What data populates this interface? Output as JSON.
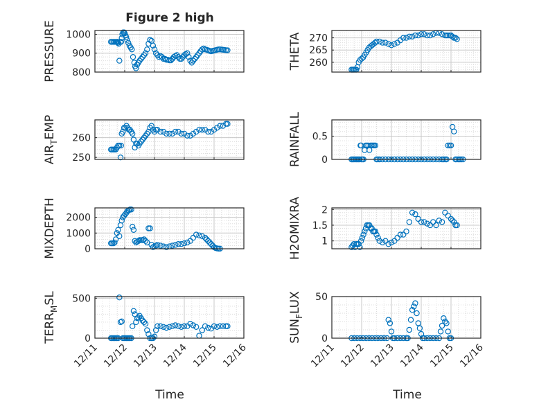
{
  "title": "Figure 2 high",
  "xlabel": "Time",
  "x_ticks": [
    "12/11",
    "12/12",
    "12/13",
    "12/14",
    "12/15",
    "12/16"
  ],
  "marker_color": "#0072BD",
  "chart_data": [
    {
      "type": "scatter",
      "ylabel": "PRESSURE",
      "ylim": [
        800,
        1020
      ],
      "yticks": [
        "800",
        "900",
        "1000"
      ],
      "xlim": [
        "12/11",
        "12/16"
      ],
      "grid": true,
      "x": [
        0.54,
        0.58,
        0.62,
        0.66,
        0.7,
        0.74,
        0.76,
        0.78,
        0.8,
        0.82,
        0.86,
        0.88,
        0.9,
        0.92,
        0.95,
        0.98,
        1.0,
        1.02,
        1.05,
        1.08,
        1.12,
        1.16,
        1.2,
        1.24,
        1.28,
        1.32,
        1.35,
        1.38,
        1.42,
        1.46,
        1.5,
        1.55,
        1.6,
        1.65,
        1.7,
        1.75,
        1.8,
        1.85,
        1.9,
        1.95,
        2.0,
        2.05,
        2.1,
        2.15,
        2.2,
        2.25,
        2.3,
        2.35,
        2.4,
        2.45,
        2.5,
        2.55,
        2.6,
        2.65,
        2.7,
        2.75,
        2.8,
        2.85,
        2.9,
        2.95,
        3.0,
        3.05,
        3.1,
        3.15,
        3.2,
        3.25,
        3.3,
        3.35,
        3.4,
        3.45,
        3.5,
        3.55,
        3.6,
        3.65,
        3.7,
        3.75,
        3.8,
        3.85,
        3.9,
        3.95,
        4.0,
        4.05,
        4.1,
        4.15,
        4.2,
        4.25,
        4.3,
        4.35,
        4.4,
        4.45
      ],
      "y": [
        960,
        960,
        960,
        960,
        960,
        960,
        960,
        955,
        950,
        860,
        960,
        960,
        980,
        1000,
        1010,
        1010,
        1005,
        995,
        985,
        970,
        955,
        940,
        930,
        920,
        880,
        850,
        830,
        820,
        840,
        850,
        860,
        870,
        880,
        890,
        900,
        920,
        950,
        970,
        965,
        940,
        920,
        900,
        890,
        880,
        885,
        880,
        870,
        870,
        865,
        865,
        862,
        862,
        870,
        880,
        885,
        890,
        880,
        870,
        870,
        880,
        890,
        895,
        900,
        880,
        860,
        850,
        860,
        870,
        880,
        890,
        900,
        910,
        920,
        925,
        920,
        918,
        915,
        912,
        910,
        912,
        914,
        916,
        918,
        920,
        920,
        919,
        918,
        917,
        916,
        915
      ]
    },
    {
      "type": "scatter",
      "ylabel": "THETA",
      "ylim": [
        256,
        273
      ],
      "yticks": [
        "260",
        "265",
        "270"
      ],
      "xlim": [
        "12/11",
        "12/16"
      ],
      "grid": true,
      "x": [
        0.66,
        0.7,
        0.74,
        0.78,
        0.82,
        0.86,
        0.9,
        0.95,
        1.0,
        1.05,
        1.1,
        1.15,
        1.2,
        1.25,
        1.3,
        1.35,
        1.4,
        1.45,
        1.5,
        1.6,
        1.7,
        1.8,
        1.9,
        2.0,
        2.1,
        2.2,
        2.3,
        2.4,
        2.5,
        2.6,
        2.7,
        2.8,
        2.9,
        3.0,
        3.1,
        3.2,
        3.3,
        3.4,
        3.5,
        3.6,
        3.7,
        3.8,
        3.85,
        3.9,
        3.95,
        4.0,
        4.05,
        4.1,
        4.15,
        4.2
      ],
      "y": [
        257,
        257,
        257,
        257,
        257,
        258,
        260,
        261,
        261.5,
        262,
        263,
        264,
        265,
        266,
        266.5,
        267,
        267.5,
        268,
        268.5,
        268.5,
        268,
        268,
        267.5,
        267,
        267.5,
        268,
        269,
        270,
        270,
        270.5,
        270.5,
        271,
        271,
        271.5,
        271.5,
        271,
        271,
        271.5,
        272,
        272,
        271.5,
        271,
        271,
        271,
        271,
        271,
        270.5,
        270,
        270,
        269.5
      ]
    },
    {
      "type": "scatter",
      "ylabel": "AIR_TEMP",
      "ylim": [
        249,
        269
      ],
      "yticks": [
        "250",
        "260"
      ],
      "xlim": [
        "12/11",
        "12/16"
      ],
      "grid": true,
      "x": [
        0.54,
        0.58,
        0.62,
        0.66,
        0.7,
        0.74,
        0.78,
        0.82,
        0.86,
        0.88,
        0.9,
        0.94,
        0.98,
        1.02,
        1.06,
        1.1,
        1.14,
        1.18,
        1.22,
        1.26,
        1.3,
        1.34,
        1.38,
        1.42,
        1.46,
        1.5,
        1.55,
        1.6,
        1.65,
        1.7,
        1.75,
        1.8,
        1.85,
        1.9,
        1.95,
        2.0,
        2.05,
        2.1,
        2.2,
        2.3,
        2.4,
        2.5,
        2.6,
        2.7,
        2.8,
        2.9,
        3.0,
        3.1,
        3.2,
        3.3,
        3.4,
        3.5,
        3.6,
        3.7,
        3.8,
        3.9,
        4.0,
        4.1,
        4.2,
        4.3,
        4.4,
        4.45
      ],
      "y": [
        254,
        254,
        254,
        254,
        254,
        255,
        256,
        256,
        250,
        256,
        262,
        263,
        265,
        265,
        266,
        265,
        264,
        264,
        263,
        262,
        259,
        255,
        257,
        257,
        256,
        257,
        258,
        259,
        260,
        261,
        262,
        263,
        265,
        266,
        264,
        263,
        264,
        264,
        263,
        263,
        262,
        262,
        262,
        263,
        263,
        262,
        262,
        261,
        261,
        262,
        263,
        264,
        264,
        264,
        263,
        263,
        264,
        265,
        266,
        266,
        267,
        267
      ]
    },
    {
      "type": "scatter",
      "ylabel": "RAINFALL",
      "ylim": [
        0,
        0.85
      ],
      "yticks": [
        "0",
        "0.5"
      ],
      "xlim": [
        "12/11",
        "12/16"
      ],
      "grid": true,
      "x": [
        0.66,
        0.7,
        0.74,
        0.78,
        0.82,
        0.86,
        0.9,
        0.94,
        0.96,
        0.98,
        1.0,
        1.02,
        1.06,
        1.1,
        1.14,
        1.18,
        1.22,
        1.26,
        1.3,
        1.34,
        1.38,
        1.42,
        1.46,
        1.5,
        1.55,
        1.6,
        1.7,
        1.8,
        1.9,
        2.0,
        2.1,
        2.2,
        2.3,
        2.4,
        2.5,
        2.6,
        2.7,
        2.8,
        2.9,
        3.0,
        3.1,
        3.2,
        3.3,
        3.4,
        3.5,
        3.6,
        3.7,
        3.75,
        3.8,
        3.85,
        3.9,
        3.95,
        4.0,
        4.05,
        4.1,
        4.15,
        4.2,
        4.25,
        4.3,
        4.35,
        4.4
      ],
      "y": [
        0,
        0,
        0,
        0,
        0,
        0,
        0,
        0,
        0.3,
        0.3,
        0,
        0,
        0,
        0.2,
        0.3,
        0.3,
        0.3,
        0.2,
        0.3,
        0.3,
        0.3,
        0.3,
        0.3,
        0,
        0,
        0,
        0,
        0,
        0,
        0,
        0,
        0,
        0,
        0,
        0,
        0,
        0,
        0,
        0,
        0,
        0,
        0,
        0,
        0,
        0,
        0,
        0,
        0,
        0,
        0,
        0.3,
        0.3,
        0.3,
        0.7,
        0.6,
        0,
        0,
        0,
        0,
        0,
        0
      ]
    },
    {
      "type": "scatter",
      "ylabel": "MIXDEPTH",
      "ylim": [
        0,
        2600
      ],
      "yticks": [
        "0",
        "1000",
        "2000"
      ],
      "xlim": [
        "12/11",
        "12/16"
      ],
      "grid": true,
      "x": [
        0.54,
        0.58,
        0.62,
        0.66,
        0.7,
        0.74,
        0.78,
        0.82,
        0.86,
        0.9,
        0.94,
        0.98,
        1.02,
        1.06,
        1.1,
        1.14,
        1.18,
        1.22,
        1.26,
        1.3,
        1.34,
        1.38,
        1.42,
        1.46,
        1.5,
        1.55,
        1.6,
        1.65,
        1.7,
        1.75,
        1.8,
        1.85,
        1.9,
        1.95,
        2.0,
        2.05,
        2.1,
        2.2,
        2.3,
        2.4,
        2.5,
        2.6,
        2.7,
        2.8,
        2.9,
        3.0,
        3.1,
        3.2,
        3.3,
        3.4,
        3.5,
        3.6,
        3.7,
        3.75,
        3.8,
        3.85,
        3.9,
        3.95,
        4.0,
        4.05,
        4.1,
        4.15,
        4.2
      ],
      "y": [
        350,
        350,
        350,
        400,
        600,
        1000,
        1200,
        800,
        1500,
        1800,
        2000,
        2100,
        2200,
        2300,
        2400,
        2450,
        2500,
        2500,
        1400,
        1200,
        500,
        400,
        450,
        500,
        550,
        550,
        550,
        600,
        500,
        400,
        1300,
        1300,
        250,
        100,
        150,
        200,
        250,
        200,
        150,
        100,
        150,
        200,
        250,
        300,
        300,
        350,
        400,
        500,
        700,
        900,
        850,
        800,
        700,
        600,
        500,
        400,
        300,
        200,
        100,
        50,
        20,
        10,
        10
      ]
    },
    {
      "type": "scatter",
      "ylabel": "H2OMIXRA",
      "ylim": [
        0.75,
        2.05
      ],
      "yticks": [
        "1",
        "1.5",
        "2"
      ],
      "xlim": [
        "12/11",
        "12/16"
      ],
      "grid": true,
      "x": [
        0.66,
        0.7,
        0.74,
        0.78,
        0.82,
        0.86,
        0.9,
        0.94,
        0.98,
        1.02,
        1.06,
        1.1,
        1.14,
        1.18,
        1.22,
        1.26,
        1.3,
        1.34,
        1.38,
        1.42,
        1.46,
        1.5,
        1.55,
        1.6,
        1.7,
        1.8,
        1.9,
        2.0,
        2.1,
        2.2,
        2.3,
        2.4,
        2.5,
        2.6,
        2.7,
        2.8,
        2.9,
        3.0,
        3.1,
        3.2,
        3.3,
        3.4,
        3.5,
        3.6,
        3.7,
        3.8,
        3.9,
        4.0,
        4.05,
        4.1,
        4.15,
        4.2
      ],
      "y": [
        0.8,
        0.85,
        0.9,
        0.8,
        0.9,
        0.9,
        0.9,
        0.8,
        1.0,
        1.1,
        1.2,
        1.3,
        1.4,
        1.5,
        1.5,
        1.5,
        1.4,
        1.4,
        1.3,
        1.3,
        1.3,
        1.2,
        1.1,
        1.0,
        0.95,
        1.0,
        0.9,
        0.95,
        1.0,
        1.1,
        1.2,
        1.2,
        1.3,
        1.6,
        1.9,
        1.85,
        1.7,
        1.6,
        1.6,
        1.55,
        1.5,
        1.6,
        1.5,
        1.65,
        1.6,
        1.9,
        1.8,
        1.7,
        1.65,
        1.6,
        1.5,
        1.5
      ]
    },
    {
      "type": "scatter",
      "ylabel": "TERR_MSL",
      "ylim": [
        0,
        520
      ],
      "yticks": [
        "0",
        "500"
      ],
      "xlim": [
        "12/11",
        "12/16"
      ],
      "grid": true,
      "x": [
        0.54,
        0.58,
        0.62,
        0.66,
        0.7,
        0.74,
        0.78,
        0.82,
        0.86,
        0.9,
        0.94,
        0.98,
        1.02,
        1.06,
        1.1,
        1.14,
        1.18,
        1.22,
        1.26,
        1.3,
        1.34,
        1.38,
        1.42,
        1.46,
        1.5,
        1.55,
        1.6,
        1.65,
        1.7,
        1.75,
        1.8,
        1.85,
        1.9,
        1.95,
        2.0,
        2.05,
        2.1,
        2.2,
        2.3,
        2.4,
        2.5,
        2.6,
        2.7,
        2.8,
        2.9,
        3.0,
        3.1,
        3.2,
        3.3,
        3.4,
        3.5,
        3.6,
        3.7,
        3.8,
        3.9,
        4.0,
        4.1,
        4.2,
        4.3,
        4.4,
        4.45
      ],
      "y": [
        0,
        0,
        0,
        0,
        0,
        0,
        0,
        510,
        200,
        210,
        0,
        0,
        0,
        0,
        0,
        0,
        0,
        0,
        150,
        340,
        300,
        200,
        250,
        260,
        280,
        250,
        220,
        200,
        180,
        100,
        50,
        0,
        0,
        0,
        20,
        100,
        150,
        150,
        140,
        130,
        140,
        150,
        160,
        150,
        140,
        150,
        150,
        180,
        160,
        140,
        30,
        100,
        150,
        130,
        120,
        150,
        140,
        150,
        150,
        150,
        150
      ]
    },
    {
      "type": "scatter",
      "ylabel": "SUN_FLUX",
      "ylim": [
        0,
        50
      ],
      "yticks": [
        "0",
        "50"
      ],
      "xlim": [
        "12/11",
        "12/16"
      ],
      "grid": true,
      "x": [
        0.66,
        0.75,
        0.85,
        0.95,
        1.05,
        1.15,
        1.25,
        1.35,
        1.45,
        1.55,
        1.65,
        1.75,
        1.85,
        1.9,
        1.95,
        2.0,
        2.05,
        2.1,
        2.2,
        2.3,
        2.4,
        2.5,
        2.55,
        2.6,
        2.65,
        2.7,
        2.75,
        2.8,
        2.85,
        2.9,
        2.95,
        3.0,
        3.05,
        3.1,
        3.2,
        3.3,
        3.4,
        3.5,
        3.6,
        3.65,
        3.7,
        3.75,
        3.8,
        3.85,
        3.9,
        3.95,
        4.0
      ],
      "y": [
        0,
        0,
        0,
        0,
        0,
        0,
        0,
        0,
        0,
        0,
        0,
        0,
        0,
        22,
        18,
        8,
        0,
        0,
        0,
        0,
        0,
        0,
        0,
        10,
        22,
        34,
        38,
        42,
        30,
        18,
        12,
        5,
        0,
        0,
        0,
        0,
        0,
        0,
        0,
        8,
        15,
        24,
        20,
        18,
        8,
        0,
        0
      ]
    }
  ]
}
